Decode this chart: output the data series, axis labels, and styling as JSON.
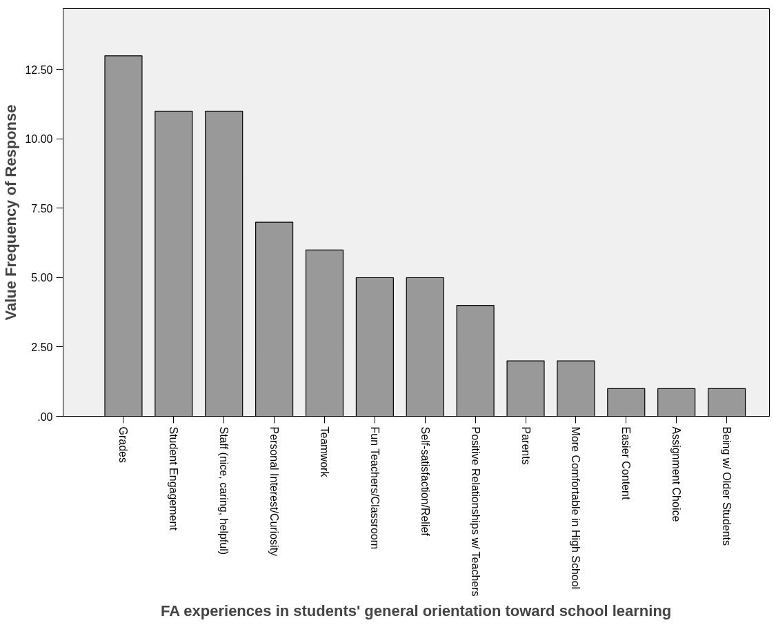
{
  "chart_data": {
    "type": "bar",
    "xlabel": "FA experiences in students' general orientation toward school learning",
    "ylabel": "Value Frequency of Response",
    "categories": [
      "Grades",
      "Student Engagement",
      "Staff (nice,  caring, helpful)",
      "Personal Interest/Curiosity",
      "Teamwork",
      "Fun Teachers/Classroom",
      "Self-satisfaction/Relief",
      "Positive Relationships w/ Teachers",
      "Parents",
      "More Comfortable in High School",
      "Easier Content",
      "Assignment Choice",
      "Being w/ Older Students"
    ],
    "values": [
      13,
      11,
      11,
      7,
      6,
      5,
      5,
      4,
      2,
      2,
      1,
      1,
      1
    ],
    "color": "#999999",
    "ylim": [
      0,
      14.7
    ],
    "yticks": [
      {
        "value": 0,
        "label": ".00"
      },
      {
        "value": 2.5,
        "label": "2.50"
      },
      {
        "value": 5,
        "label": "5.00"
      },
      {
        "value": 7.5,
        "label": "7.50"
      },
      {
        "value": 10,
        "label": "10.00"
      },
      {
        "value": 12.5,
        "label": "12.50"
      }
    ],
    "grid": false
  }
}
